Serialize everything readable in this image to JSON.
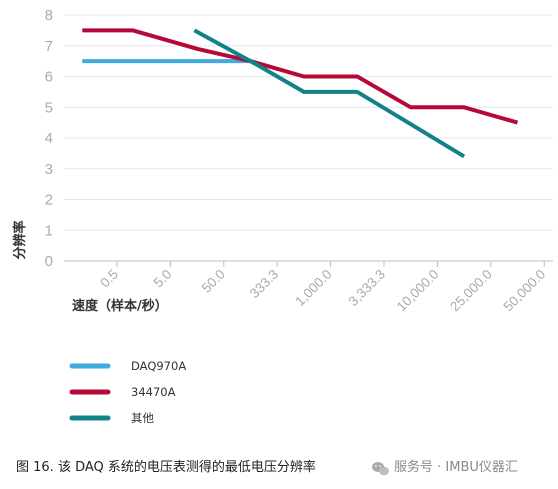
{
  "chart_data": {
    "type": "line",
    "categories": [
      "0.5",
      "5.0",
      "50.0",
      "333.3",
      "1,000.0",
      "3,333.3",
      "10,000.0",
      "25,000.0",
      "50,000.0"
    ],
    "y_ticks": [
      "0",
      "1",
      "2",
      "3",
      "4",
      "5",
      "6",
      "7",
      "8"
    ],
    "ylim": [
      0,
      8
    ],
    "xlabel": "速度（样本/秒）",
    "ylabel": "分辨率",
    "grid": "horizontal",
    "legend_position": "bottom-left",
    "series": [
      {
        "name": "DAQ970A",
        "color": "#3fa9e0",
        "points": [
          [
            -0.65,
            6.5
          ],
          [
            2.5,
            6.5
          ]
        ]
      },
      {
        "name": "34470A",
        "color": "#b5093a",
        "points": [
          [
            -0.65,
            7.5
          ],
          [
            0.3,
            7.5
          ],
          [
            1.5,
            6.9
          ],
          [
            2.5,
            6.5
          ],
          [
            3.5,
            6.0
          ],
          [
            4.5,
            6.0
          ],
          [
            5.5,
            5.0
          ],
          [
            6.5,
            5.0
          ],
          [
            7.5,
            4.5
          ]
        ]
      },
      {
        "name": "其他",
        "color": "#12828a",
        "points": [
          [
            1.45,
            7.5
          ],
          [
            2.5,
            6.5
          ],
          [
            3.5,
            5.5
          ],
          [
            4.5,
            5.5
          ],
          [
            6.5,
            3.4
          ]
        ]
      }
    ]
  },
  "caption": "图 16. 该 DAQ 系统的电压表测得的最低电压分辨率",
  "watermark": {
    "icon": "wechat-icon",
    "text": "服务号 · IMBU仪器汇"
  }
}
